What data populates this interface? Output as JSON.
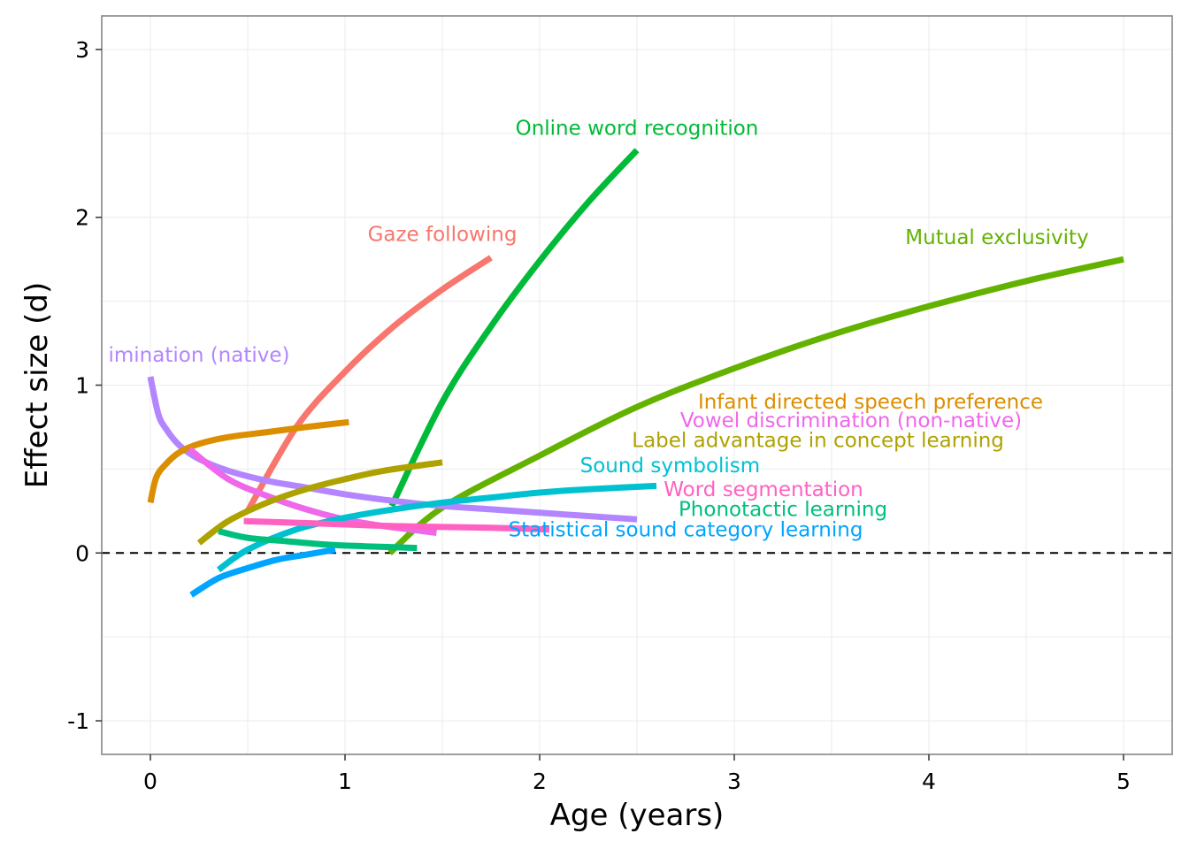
{
  "chart_data": {
    "type": "line",
    "title": "",
    "xlabel": "Age (years)",
    "ylabel": "Effect size (d)",
    "xlim": [
      -0.25,
      5.25
    ],
    "ylim": [
      -1.2,
      3.2
    ],
    "xticks": [
      0,
      1,
      2,
      3,
      4,
      5
    ],
    "yticks": [
      -1,
      0,
      1,
      2,
      3
    ],
    "xtick_labels": [
      "0",
      "1",
      "2",
      "3",
      "4",
      "5"
    ],
    "ytick_labels": [
      "-1",
      "0",
      "1",
      "2",
      "3"
    ],
    "grid": true,
    "reference_line": {
      "y": 0,
      "style": "dashed"
    },
    "series": [
      {
        "name": "Gaze following",
        "color": "#F8766D",
        "x": [
          0.5,
          0.75,
          1.0,
          1.25,
          1.5,
          1.75
        ],
        "y": [
          0.25,
          0.75,
          1.08,
          1.35,
          1.57,
          1.76
        ],
        "label_x": 1.5,
        "label_y": 1.86
      },
      {
        "name": "Online word recognition",
        "color": "#00BA38",
        "x": [
          1.24,
          1.5,
          1.75,
          2.0,
          2.25,
          2.5
        ],
        "y": [
          0.28,
          0.9,
          1.35,
          1.74,
          2.09,
          2.4
        ],
        "label_x": 2.5,
        "label_y": 2.49
      },
      {
        "name": "Mutual exclusivity",
        "color": "#64B200",
        "x": [
          1.23,
          1.5,
          2.0,
          2.5,
          3.0,
          3.5,
          4.0,
          4.5,
          5.0
        ],
        "y": [
          0.0,
          0.27,
          0.58,
          0.87,
          1.1,
          1.3,
          1.47,
          1.62,
          1.75
        ],
        "label_x": 4.35,
        "label_y": 1.84
      },
      {
        "name": "Vowel discrimination (native)",
        "color": "#B385FF",
        "label_text": "imination (native)",
        "x": [
          0.0,
          0.04,
          0.08,
          0.15,
          0.25,
          0.4,
          0.6,
          0.8,
          1.0,
          1.25,
          1.5,
          1.75,
          2.0,
          2.25,
          2.5
        ],
        "y": [
          1.05,
          0.83,
          0.74,
          0.64,
          0.56,
          0.49,
          0.43,
          0.39,
          0.35,
          0.31,
          0.28,
          0.26,
          0.24,
          0.22,
          0.2
        ],
        "label_x": 0.25,
        "label_y": 1.14
      },
      {
        "name": "Infant directed speech preference",
        "color": "#DB8E00",
        "x": [
          0.0,
          0.03,
          0.08,
          0.15,
          0.25,
          0.4,
          0.6,
          0.8,
          1.02
        ],
        "y": [
          0.3,
          0.45,
          0.53,
          0.6,
          0.65,
          0.69,
          0.72,
          0.75,
          0.78
        ],
        "label_x": 3.7,
        "label_y": 0.86
      },
      {
        "name": "Vowel discrimination (non-native)",
        "color": "#EF67EB",
        "x": [
          0.2,
          0.4,
          0.6,
          0.8,
          1.0,
          1.2,
          1.47
        ],
        "y": [
          0.62,
          0.44,
          0.34,
          0.26,
          0.2,
          0.16,
          0.12
        ],
        "label_x": 3.6,
        "label_y": 0.75
      },
      {
        "name": "Label advantage in concept learning",
        "color": "#AEA200",
        "x": [
          0.25,
          0.4,
          0.6,
          0.8,
          1.0,
          1.2,
          1.5
        ],
        "y": [
          0.06,
          0.19,
          0.3,
          0.38,
          0.44,
          0.49,
          0.54
        ],
        "label_x": 3.43,
        "label_y": 0.63
      },
      {
        "name": "Sound symbolism",
        "color": "#00C1D0",
        "x": [
          0.35,
          0.5,
          0.75,
          1.0,
          1.25,
          1.5,
          1.75,
          2.0,
          2.25,
          2.6
        ],
        "y": [
          -0.1,
          0.02,
          0.14,
          0.21,
          0.26,
          0.3,
          0.33,
          0.36,
          0.38,
          0.4
        ],
        "label_x": 2.67,
        "label_y": 0.48
      },
      {
        "name": "Word segmentation",
        "color": "#FF61C3",
        "x": [
          0.48,
          0.75,
          1.0,
          1.25,
          1.5,
          1.75,
          2.05
        ],
        "y": [
          0.19,
          0.18,
          0.17,
          0.16,
          0.155,
          0.15,
          0.14
        ],
        "label_x": 3.15,
        "label_y": 0.34
      },
      {
        "name": "Phonotactic learning",
        "color": "#00BF7D",
        "x": [
          0.35,
          0.5,
          0.7,
          0.9,
          1.1,
          1.37
        ],
        "y": [
          0.13,
          0.09,
          0.07,
          0.05,
          0.04,
          0.03
        ],
        "label_x": 3.25,
        "label_y": 0.22
      },
      {
        "name": "Statistical sound category learning",
        "color": "#00A5FF",
        "x": [
          0.21,
          0.35,
          0.5,
          0.65,
          0.8,
          0.95
        ],
        "y": [
          -0.25,
          -0.15,
          -0.09,
          -0.04,
          -0.01,
          0.02
        ],
        "label_x": 2.75,
        "label_y": 0.1
      }
    ]
  }
}
